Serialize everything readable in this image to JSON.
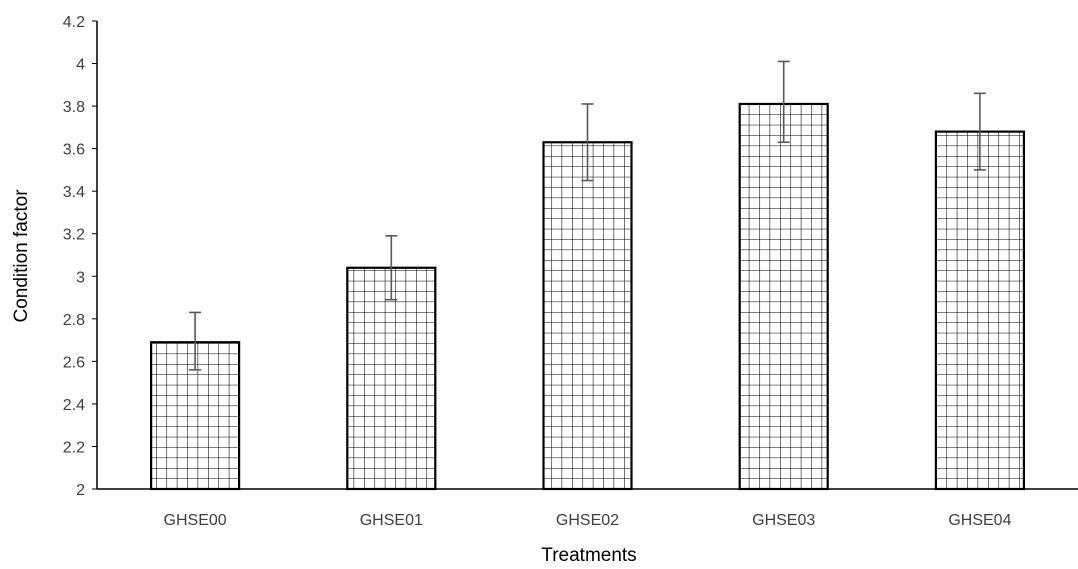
{
  "chart_data": {
    "type": "bar",
    "title": "",
    "xlabel": "Treatments",
    "ylabel": "Condition factor",
    "categories": [
      "GHSE00",
      "GHSE01",
      "GHSE02",
      "GHSE03",
      "GHSE04"
    ],
    "values": [
      2.69,
      3.04,
      3.63,
      3.81,
      3.68
    ],
    "error_low": [
      2.56,
      2.89,
      3.45,
      3.63,
      3.5
    ],
    "error_high": [
      2.83,
      3.19,
      3.81,
      4.01,
      3.86
    ],
    "ylim": [
      2,
      4.2
    ],
    "yticks": [
      "2",
      "2.2",
      "2.4",
      "2.6",
      "2.8",
      "3",
      "3.2",
      "3.4",
      "3.6",
      "3.8",
      "4",
      "4.2"
    ],
    "grid": false,
    "legend": "none",
    "bar_fill_pattern": "grid-hatch",
    "colors": {
      "bar_stroke": "#000000",
      "error_bar": "#595959",
      "axis": "#000000",
      "tick_text": "#404040"
    }
  }
}
